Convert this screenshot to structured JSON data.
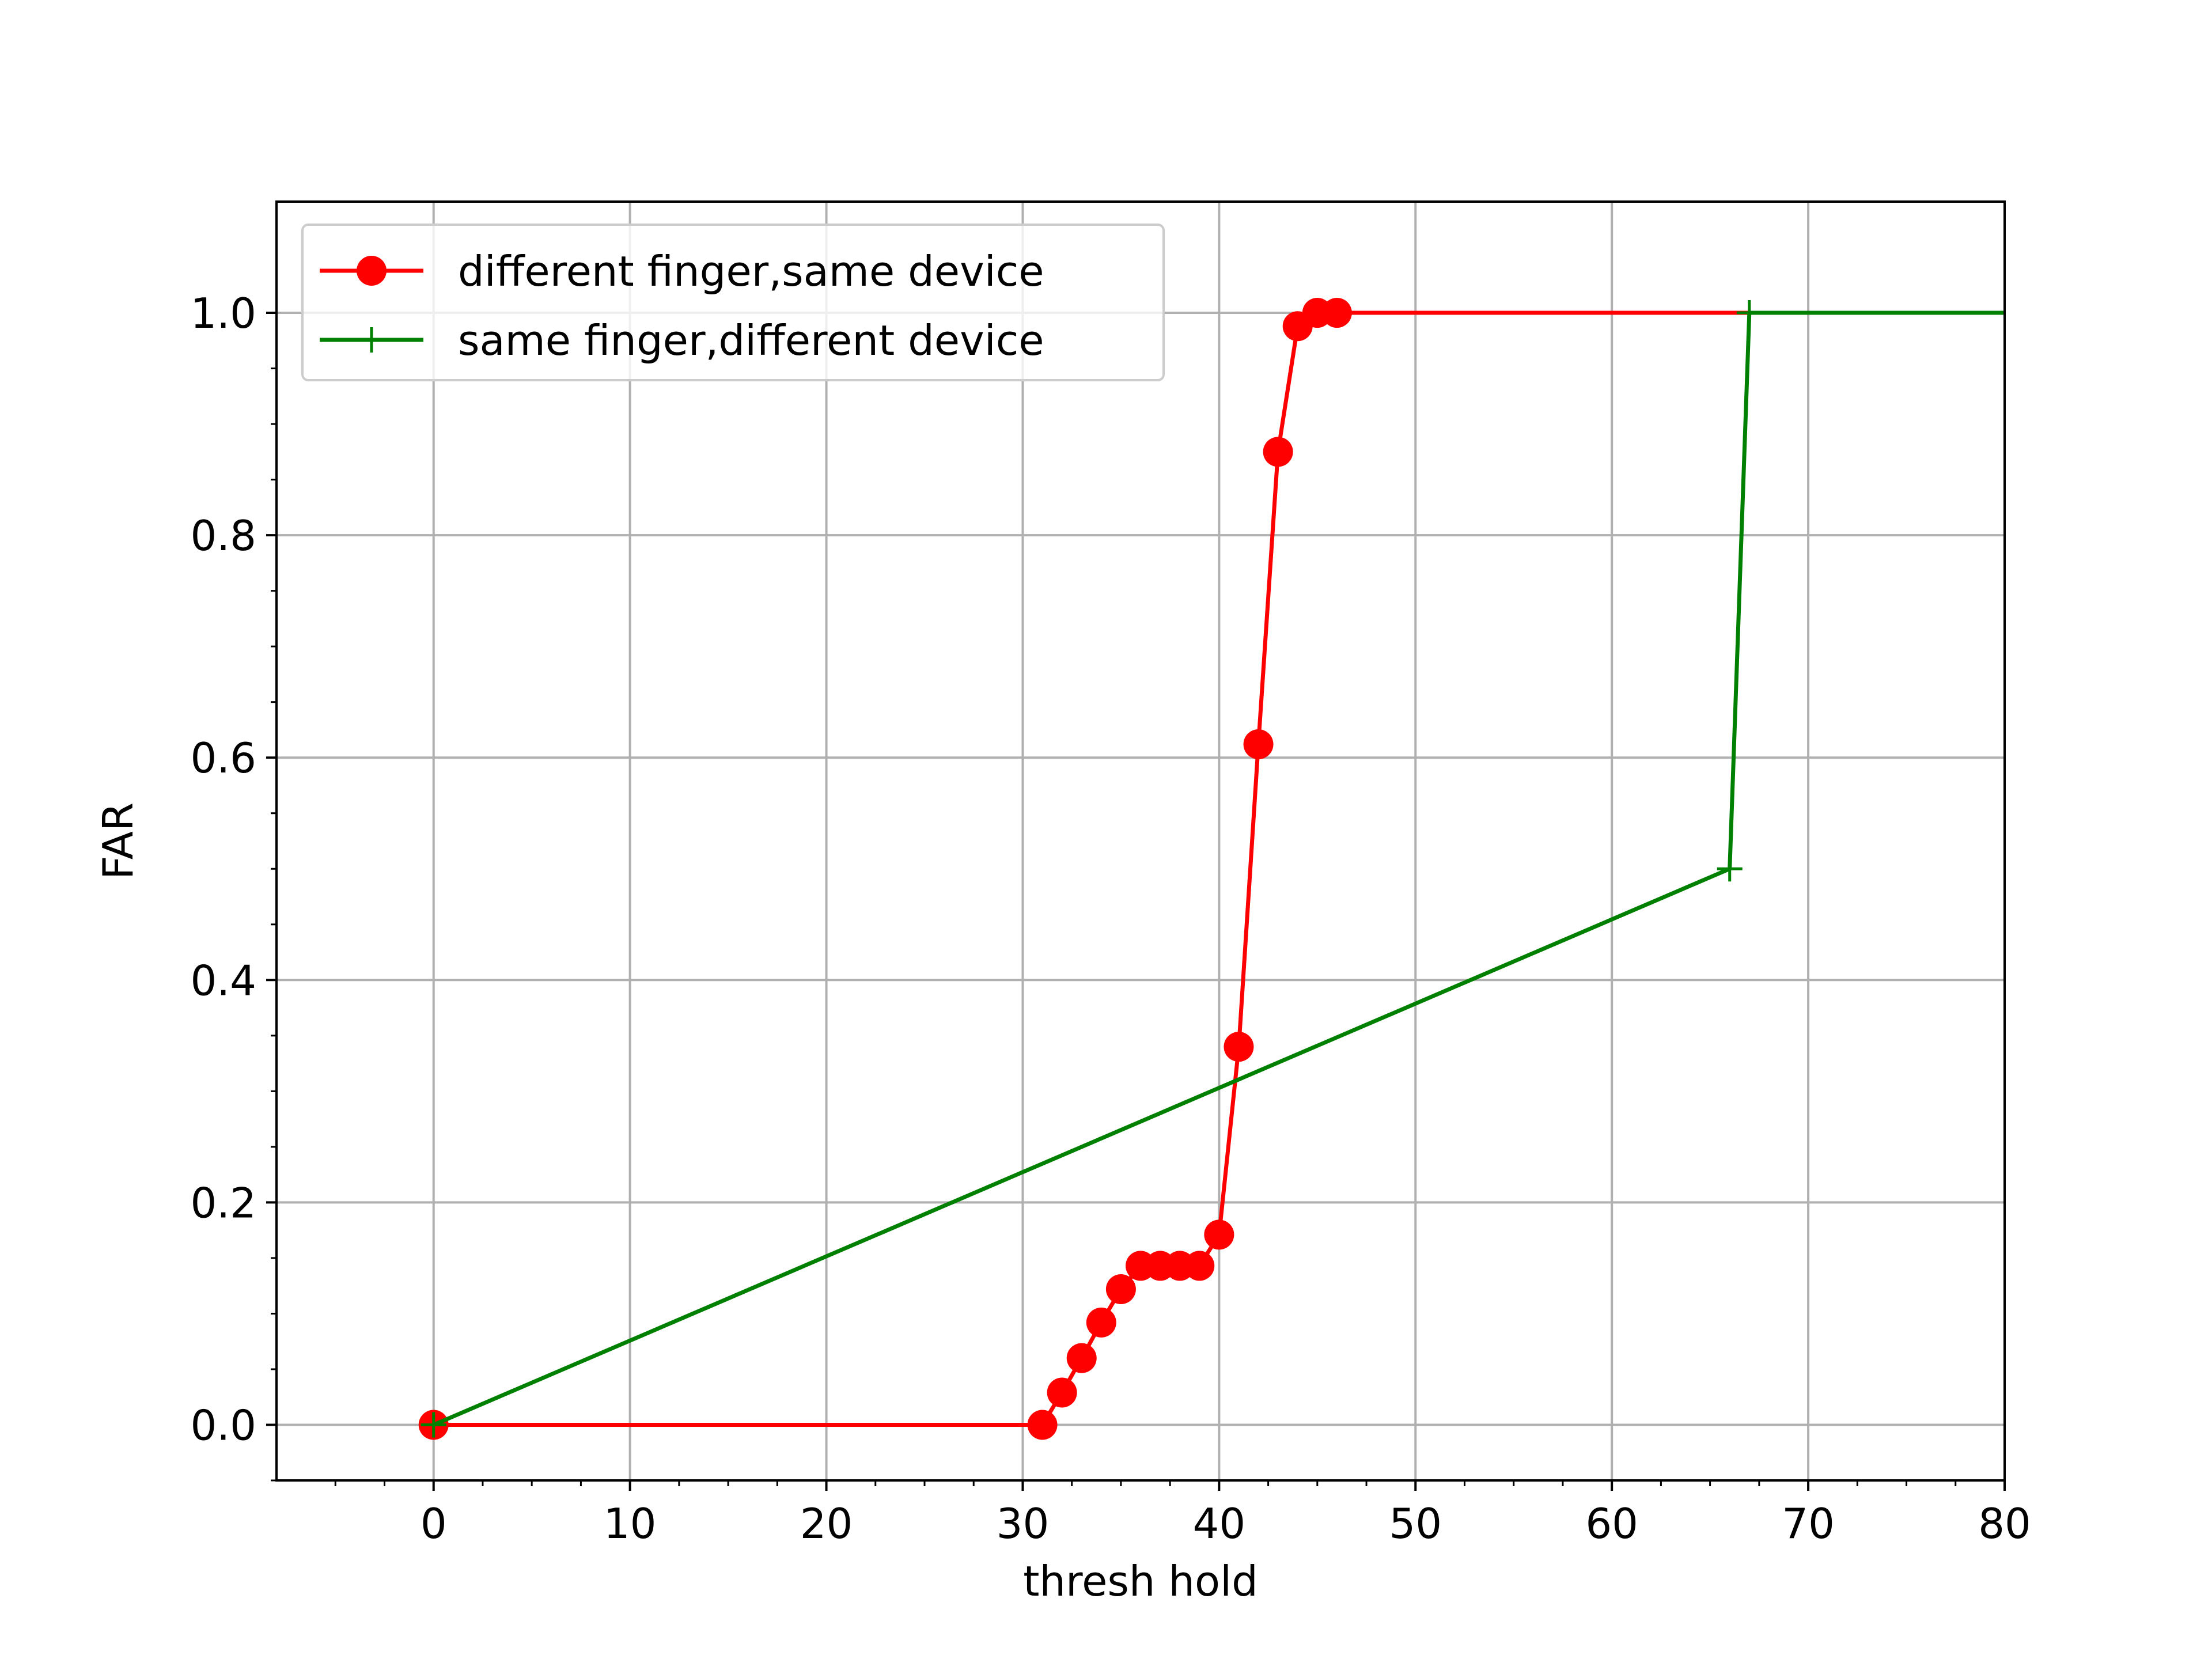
{
  "chart_data": {
    "type": "line",
    "title": "",
    "xlabel": "thresh hold",
    "ylabel": "FAR",
    "xlim": [
      -8,
      80
    ],
    "ylim": [
      -0.05,
      1.1
    ],
    "xticks": [
      0,
      10,
      20,
      30,
      40,
      50,
      60,
      70,
      80
    ],
    "yticks": [
      0.0,
      0.2,
      0.4,
      0.6,
      0.8,
      1.0
    ],
    "xtick_labels": [
      "0",
      "10",
      "20",
      "30",
      "40",
      "50",
      "60",
      "70",
      "80"
    ],
    "ytick_labels": [
      "0.0",
      "0.2",
      "0.4",
      "0.6",
      "0.8",
      "1.0"
    ],
    "grid": true,
    "legend": "top-left",
    "series": [
      {
        "name": "different finger,same device",
        "color": "#ff0000",
        "marker": "circle",
        "x": [
          0,
          31,
          32,
          33,
          34,
          35,
          36,
          37,
          38,
          39,
          40,
          41,
          42,
          43,
          44,
          45,
          46,
          67
        ],
        "y": [
          0.0,
          0.0,
          0.029,
          0.06,
          0.092,
          0.122,
          0.143,
          0.143,
          0.143,
          0.143,
          0.171,
          0.34,
          0.612,
          0.875,
          0.988,
          1.0,
          1.0,
          1.0
        ],
        "marked": [
          true,
          true,
          true,
          true,
          true,
          true,
          true,
          true,
          true,
          true,
          true,
          true,
          true,
          true,
          true,
          true,
          true,
          false
        ]
      },
      {
        "name": "same finger,different device",
        "color": "#008000",
        "marker": "plus",
        "x": [
          0,
          66,
          67,
          80
        ],
        "y": [
          0.0,
          0.5,
          1.0,
          1.0
        ],
        "marked": [
          true,
          true,
          true,
          false
        ]
      }
    ]
  }
}
